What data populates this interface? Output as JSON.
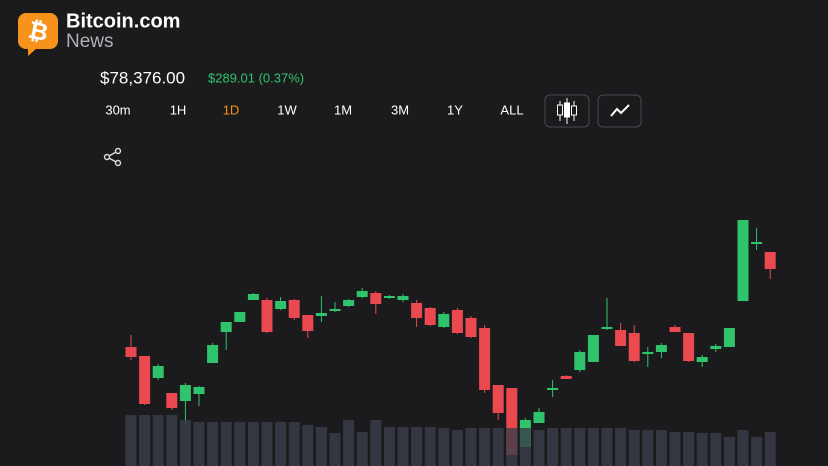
{
  "header": {
    "brand": "Bitcoin.com",
    "sub": "News"
  },
  "price": "$78,376.00",
  "change": "$289.01 (0.37%)",
  "timeframes": [
    "30m",
    "1H",
    "1D",
    "1W",
    "1M",
    "3M",
    "1Y",
    "ALL"
  ],
  "active_timeframe": 2,
  "chart_data": {
    "type": "candlestick",
    "up_color": "#2fc46b",
    "down_color": "#ea4a4f",
    "volume_color": "#3a3e4a",
    "ylim": [
      34,
      500
    ],
    "volume_ylim": [
      0,
      100
    ],
    "open": [
      153,
      144,
      122,
      107,
      99,
      106,
      137,
      168,
      178,
      200,
      200,
      191,
      200,
      185,
      184,
      189,
      194,
      203,
      207,
      202,
      200,
      197,
      192,
      173,
      190,
      182,
      172,
      115,
      112,
      53,
      77,
      110,
      124,
      130,
      138,
      171,
      170,
      167,
      146,
      148,
      173,
      167,
      138,
      151,
      153,
      199,
      256,
      248
    ],
    "high": [
      165,
      144,
      136,
      107,
      117,
      114,
      157,
      178,
      188,
      207,
      202,
      203,
      201,
      185,
      204,
      198,
      201,
      212,
      209,
      205,
      206,
      200,
      193,
      188,
      192,
      184,
      175,
      115,
      112,
      82,
      92,
      120,
      125,
      150,
      165,
      202,
      177,
      175,
      153,
      157,
      175,
      167,
      145,
      156,
      172,
      280,
      272,
      248
    ],
    "low": [
      140,
      95,
      120,
      90,
      75,
      94,
      137,
      150,
      178,
      200,
      167,
      190,
      180,
      162,
      178,
      188,
      193,
      202,
      186,
      201,
      198,
      173,
      174,
      172,
      166,
      162,
      107,
      80,
      45,
      53,
      77,
      103,
      121,
      128,
      138,
      170,
      154,
      138,
      133,
      142,
      168,
      138,
      133,
      148,
      153,
      199,
      250,
      221
    ],
    "close": [
      143,
      96,
      134,
      92,
      115,
      113,
      155,
      178,
      188,
      206,
      168,
      199,
      182,
      169,
      187,
      191,
      200,
      209,
      196,
      204,
      204,
      182,
      175,
      186,
      167,
      163,
      110,
      87,
      45,
      80,
      88,
      112,
      121,
      148,
      165,
      173,
      154,
      139,
      148,
      155,
      168,
      139,
      143,
      154,
      172,
      280,
      258,
      231
    ],
    "volume": [
      51,
      51,
      51,
      51,
      46,
      44,
      44,
      44,
      44,
      44,
      44,
      44,
      44,
      41,
      39,
      33,
      46,
      34,
      46,
      39,
      39,
      39,
      39,
      38,
      36,
      38,
      38,
      38,
      38,
      38,
      36,
      38,
      38,
      38,
      38,
      38,
      38,
      36,
      36,
      36,
      34,
      34,
      33,
      33,
      29,
      36,
      29,
      34
    ]
  }
}
